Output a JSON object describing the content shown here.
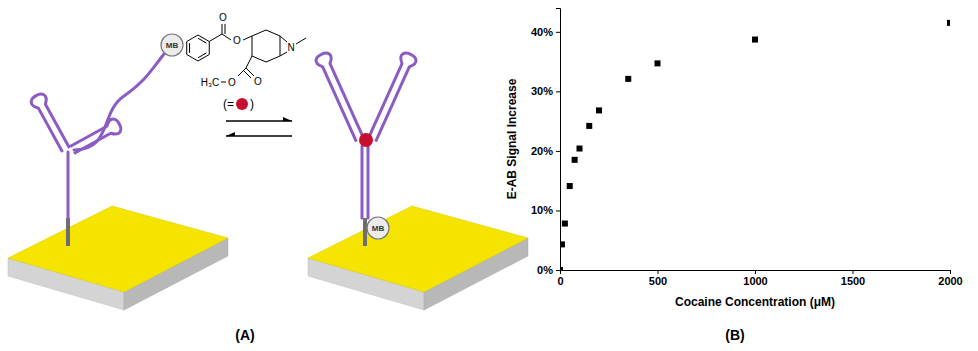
{
  "panel_labels": [
    "(A)",
    "(B)"
  ],
  "diagram": {
    "reporter_labels": [
      "MB",
      "MB"
    ],
    "ligand_key": [
      "(=",
      ")"
    ],
    "molecule_atoms": [
      "O",
      "O",
      "O",
      "H₃C",
      "O",
      "N"
    ]
  },
  "chart_data": {
    "type": "scatter",
    "xlabel": "Cocaine Concentration (μM)",
    "ylabel": "E-AB Signal Increase",
    "x": [
      0,
      10,
      25,
      50,
      75,
      100,
      150,
      200,
      350,
      500,
      1000,
      2000
    ],
    "values": [
      0,
      4.3,
      7.8,
      14.1,
      18.5,
      20.4,
      24.2,
      26.8,
      32.1,
      34.7,
      38.7,
      41.5
    ],
    "color": "#000000",
    "marker": "square",
    "grid": false,
    "xlim": [
      0,
      2000
    ],
    "ylim": [
      0,
      44
    ],
    "xticks": [
      0,
      500,
      1000,
      1500,
      2000
    ],
    "yticks": [
      {
        "value": 0,
        "label": "0%"
      },
      {
        "value": 10,
        "label": "10%"
      },
      {
        "value": 20,
        "label": "20%"
      },
      {
        "value": 30,
        "label": "30%"
      },
      {
        "value": 40,
        "label": "40%"
      }
    ]
  }
}
